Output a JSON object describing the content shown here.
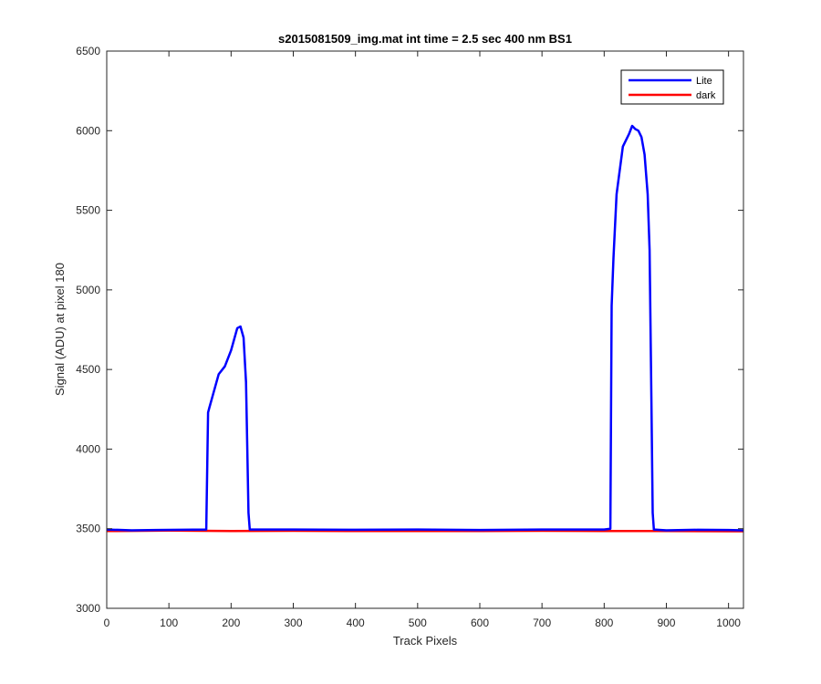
{
  "chart_data": {
    "type": "line",
    "title": "s2015081509_img.mat int time = 2.5 sec  400 nm BS1",
    "xlabel": "Track Pixels",
    "ylabel": "Signal (ADU) at pixel 180",
    "xlim": [
      0,
      1024
    ],
    "ylim": [
      3000,
      6500
    ],
    "xticks": [
      0,
      100,
      200,
      300,
      400,
      500,
      600,
      700,
      800,
      900,
      1000
    ],
    "yticks": [
      3000,
      3500,
      4000,
      4500,
      5000,
      5500,
      6000,
      6500
    ],
    "grid": false,
    "legend_position": "top-right",
    "series": [
      {
        "name": "Lite",
        "color": "#0000ff",
        "x": [
          0,
          40,
          80,
          120,
          160,
          163,
          165,
          170,
          180,
          190,
          200,
          205,
          210,
          215,
          220,
          224,
          226,
          228,
          230,
          260,
          300,
          400,
          500,
          600,
          700,
          800,
          810,
          812,
          815,
          820,
          830,
          840,
          845,
          850,
          855,
          860,
          865,
          870,
          873,
          876,
          878,
          880,
          900,
          950,
          1000,
          1024
        ],
        "y": [
          3495,
          3490,
          3492,
          3493,
          3495,
          4230,
          4260,
          4330,
          4470,
          4520,
          4620,
          4690,
          4760,
          4770,
          4700,
          4420,
          4000,
          3600,
          3495,
          3495,
          3495,
          3493,
          3495,
          3492,
          3495,
          3495,
          3500,
          4900,
          5200,
          5600,
          5900,
          5980,
          6030,
          6010,
          6000,
          5960,
          5850,
          5600,
          5250,
          4300,
          3600,
          3495,
          3490,
          3493,
          3492,
          3490
        ]
      },
      {
        "name": "dark",
        "color": "#ff0000",
        "x": [
          0,
          100,
          200,
          300,
          400,
          500,
          600,
          700,
          800,
          900,
          1000,
          1024
        ],
        "y": [
          3485,
          3488,
          3486,
          3487,
          3485,
          3486,
          3485,
          3487,
          3486,
          3485,
          3484,
          3484
        ]
      }
    ]
  }
}
